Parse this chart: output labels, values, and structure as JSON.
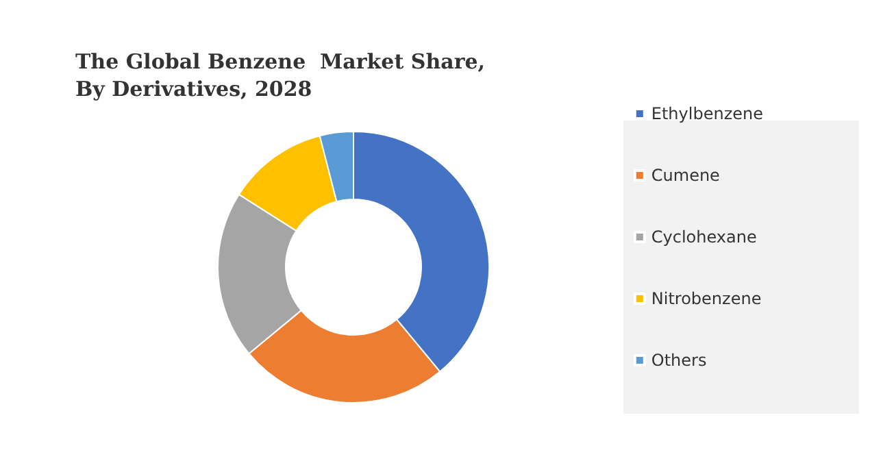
{
  "chart_data": {
    "type": "donut",
    "title": "The Global Benzene  Market Share,\nBy Derivatives, 2028",
    "categories": [
      "Ethylbenzene",
      "Cumene",
      "Cyclohexane",
      "Nitrobenzene",
      "Others"
    ],
    "values": [
      39,
      25,
      20,
      12,
      4
    ],
    "colors": [
      "#4472c4",
      "#ed7d31",
      "#a5a5a5",
      "#ffc000",
      "#5b9bd5"
    ],
    "legend": "right"
  }
}
